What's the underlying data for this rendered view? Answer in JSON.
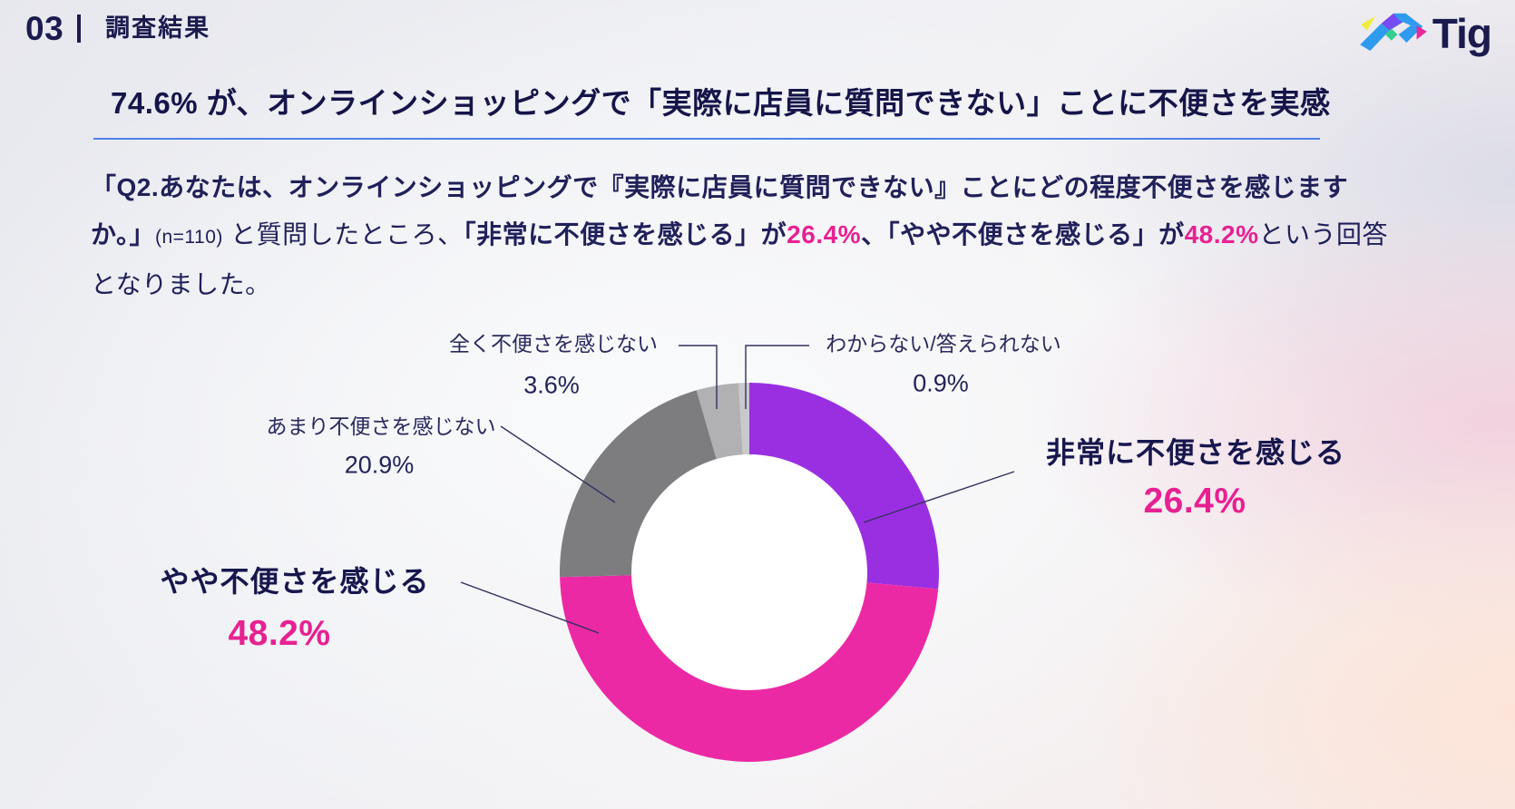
{
  "header": {
    "slide_number": "03",
    "section_title": "調査結果",
    "logo_text": "Tig"
  },
  "title": {
    "text": "74.6% が、オンラインショッピングで「実際に店員に質問できない」ことに不便さを実感"
  },
  "paragraph": {
    "lines": [
      {
        "segments": [
          {
            "style": "bold",
            "text": "「Q2.あなたは、オンラインショッピングで『実際に店員に質問できない』ことにどの程度不便さを感じます"
          }
        ]
      },
      {
        "segments": [
          {
            "style": "bold",
            "text": "か。」"
          },
          {
            "style": "note",
            "text": "(n=110)"
          },
          {
            "style": "regular",
            "text": " と質問したところ、"
          },
          {
            "style": "bold",
            "text": "「非常に不便さを感じる」が"
          },
          {
            "style": "pink",
            "text": "26.4%"
          },
          {
            "style": "bold",
            "text": "、「やや不便さを感じる」が"
          },
          {
            "style": "pink",
            "text": "48.2%"
          },
          {
            "style": "regular",
            "text": "という回答"
          }
        ]
      },
      {
        "segments": [
          {
            "style": "regular",
            "text": "となりました。"
          }
        ]
      }
    ]
  },
  "chart_data": {
    "type": "pie",
    "donut": true,
    "sample_size_label": "n=110",
    "start_angle_deg": 0,
    "direction": "clockwise",
    "inner_radius_ratio": 0.62,
    "hole_color": "#FFFFFF",
    "slices": [
      {
        "label": "非常に不便さを感じる",
        "pct_label": "26.4%",
        "value": 26.4,
        "color": "#9A2FE2",
        "emphasized": true
      },
      {
        "label": "やや不便さを感じる",
        "pct_label": "48.2%",
        "value": 48.2,
        "color": "#EC29A4",
        "emphasized": true
      },
      {
        "label": "あまり不便さを感じない",
        "pct_label": "20.9%",
        "value": 20.9,
        "color": "#7D7D80",
        "emphasized": false
      },
      {
        "label": "全く不便さを感じない",
        "pct_label": "3.6%",
        "value": 3.6,
        "color": "#B1B1B4",
        "emphasized": false
      },
      {
        "label": "わからない/答えられない",
        "pct_label": "0.9%",
        "value": 0.9,
        "color": "#C9C9CC",
        "emphasized": false
      }
    ]
  },
  "colors": {
    "accent_pink": "#E72192",
    "navy": "#1B1B4F",
    "title_bar_top": "#8A2FF0",
    "title_bar_bottom": "#2E7CF6",
    "title_underline": "#4E82E8"
  }
}
